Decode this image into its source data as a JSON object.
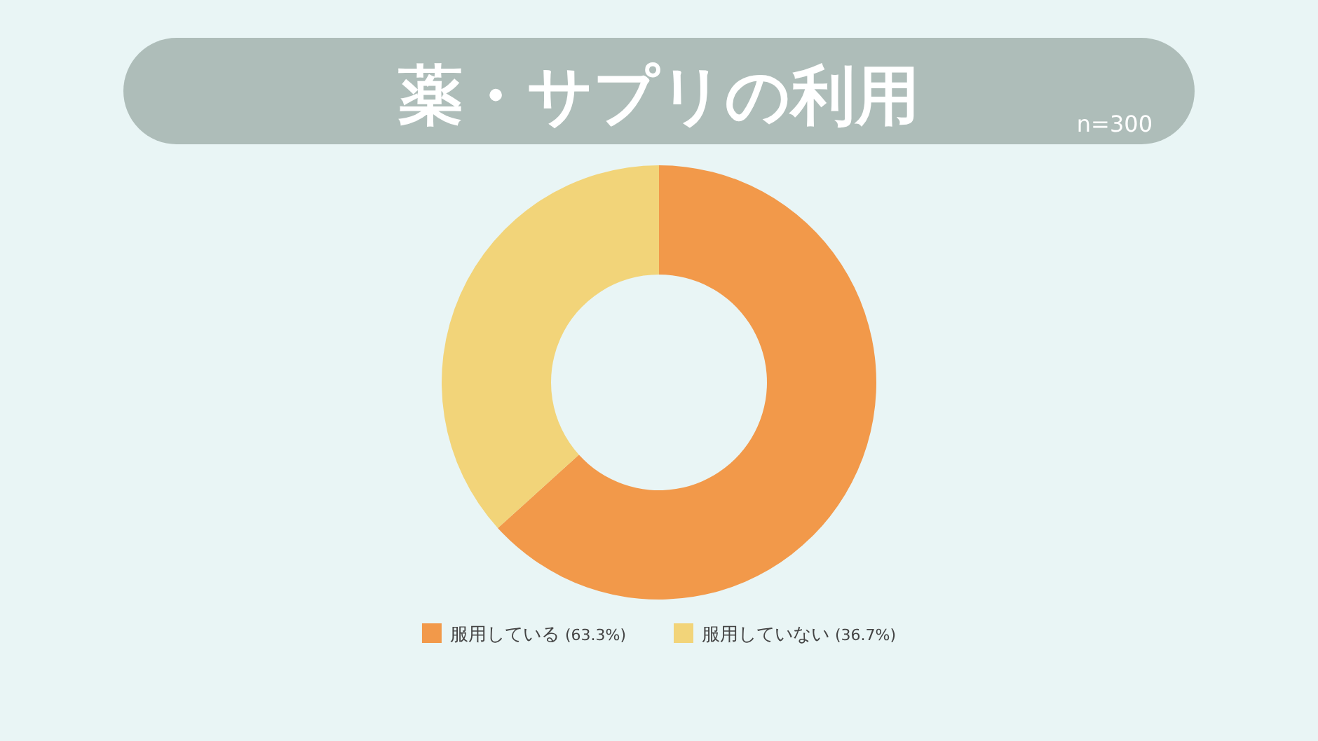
{
  "chart_data": {
    "type": "donut",
    "title": "薬・サプリの利用",
    "annotations": [
      "n=300"
    ],
    "categories": [
      "服用している",
      "服用していない"
    ],
    "values": [
      63.3,
      36.7
    ],
    "colors": [
      "#f2994a",
      "#f2d479"
    ],
    "value_labels": [
      "(63.3%)",
      "(36.7%)"
    ],
    "legend": "bottom"
  }
}
